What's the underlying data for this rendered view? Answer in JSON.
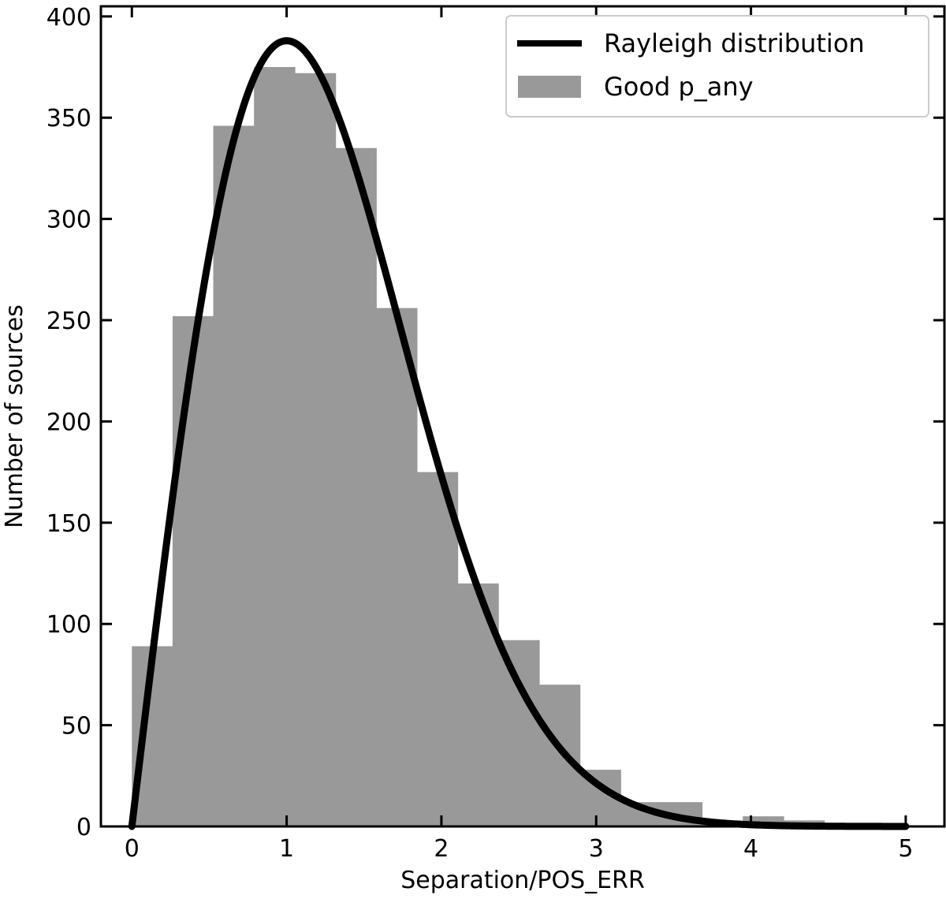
{
  "chart_data": {
    "type": "bar",
    "xlabel": "Separation/POS_ERR",
    "ylabel": "Number of sources",
    "xlim": [
      -0.2,
      5.25
    ],
    "ylim": [
      0,
      405
    ],
    "xticks": [
      0,
      1,
      2,
      3,
      4,
      5
    ],
    "yticks": [
      0,
      50,
      100,
      150,
      200,
      250,
      300,
      350,
      400
    ],
    "xtick_labels": [
      "0",
      "1",
      "2",
      "3",
      "4",
      "5"
    ],
    "ytick_labels": [
      "0",
      "50",
      "100",
      "150",
      "200",
      "250",
      "300",
      "350",
      "400"
    ],
    "grid": false,
    "legend": {
      "placement": "top-right",
      "entries": [
        {
          "label": "Rayleigh distribution",
          "kind": "line",
          "color": "#000000"
        },
        {
          "label": "Good p_any",
          "kind": "patch",
          "color": "#999999"
        }
      ]
    },
    "histogram": {
      "name": "Good p_any",
      "color": "#999999",
      "bin_edges": [
        0.0,
        0.263,
        0.526,
        0.789,
        1.053,
        1.316,
        1.579,
        1.842,
        2.105,
        2.368,
        2.632,
        2.895,
        3.158,
        3.421,
        3.684,
        3.947,
        4.211,
        4.474,
        4.737,
        5.0
      ],
      "counts": [
        89,
        252,
        346,
        375,
        372,
        335,
        256,
        175,
        120,
        92,
        70,
        28,
        12,
        12,
        2,
        5,
        3,
        1,
        1
      ]
    },
    "curve": {
      "name": "Rayleigh distribution",
      "color": "#000000",
      "sigma": 1.0,
      "peak": 388,
      "x_range": [
        0,
        5
      ]
    }
  }
}
